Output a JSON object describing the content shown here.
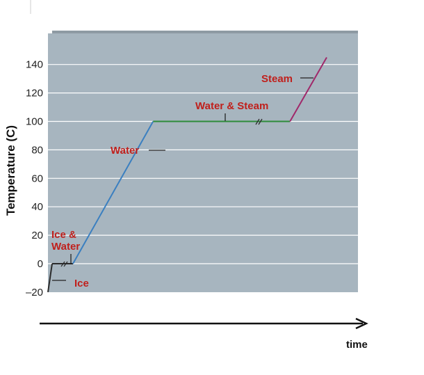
{
  "chart_data": {
    "type": "line",
    "title": "",
    "ylabel": "Temperature (C)",
    "xlabel": "time",
    "ylim": [
      -20,
      150
    ],
    "yticks": [
      -20,
      0,
      20,
      40,
      60,
      80,
      100,
      120,
      140
    ],
    "grid": true,
    "x": [
      0,
      0.5,
      3,
      12.6,
      29,
      33.4
    ],
    "y": [
      -20,
      0,
      0,
      100,
      100,
      145
    ],
    "segments": [
      {
        "name": "Ice",
        "color": "#2b2b2b",
        "x": [
          0,
          0.5
        ],
        "y": [
          -20,
          0
        ]
      },
      {
        "name": "Ice & Water",
        "color": "#2b2b2b",
        "x": [
          0.5,
          3
        ],
        "y": [
          0,
          0
        ]
      },
      {
        "name": "Water",
        "color": "#3a7fc0",
        "x": [
          3,
          12.6
        ],
        "y": [
          0,
          100
        ]
      },
      {
        "name": "Water & Steam",
        "color": "#2e8b3a",
        "x": [
          12.6,
          29
        ],
        "y": [
          100,
          100
        ]
      },
      {
        "name": "Steam",
        "color": "#a0286a",
        "x": [
          29,
          33.4
        ],
        "y": [
          100,
          145
        ]
      }
    ],
    "annotations": [
      {
        "text": "Ice",
        "color": "#c0201c"
      },
      {
        "text": "Ice &",
        "color": "#c0201c"
      },
      {
        "text": "Water",
        "color": "#c0201c"
      },
      {
        "text": "Water",
        "color": "#c0201c"
      },
      {
        "text": "Water & Steam",
        "color": "#c0201c"
      },
      {
        "text": "Steam",
        "color": "#c0201c"
      }
    ],
    "colors": {
      "plot_background": "#a7b5bf",
      "gridline": "#ffffff",
      "annotation_text": "#c0201c",
      "axis_arrow": "#111111"
    }
  }
}
